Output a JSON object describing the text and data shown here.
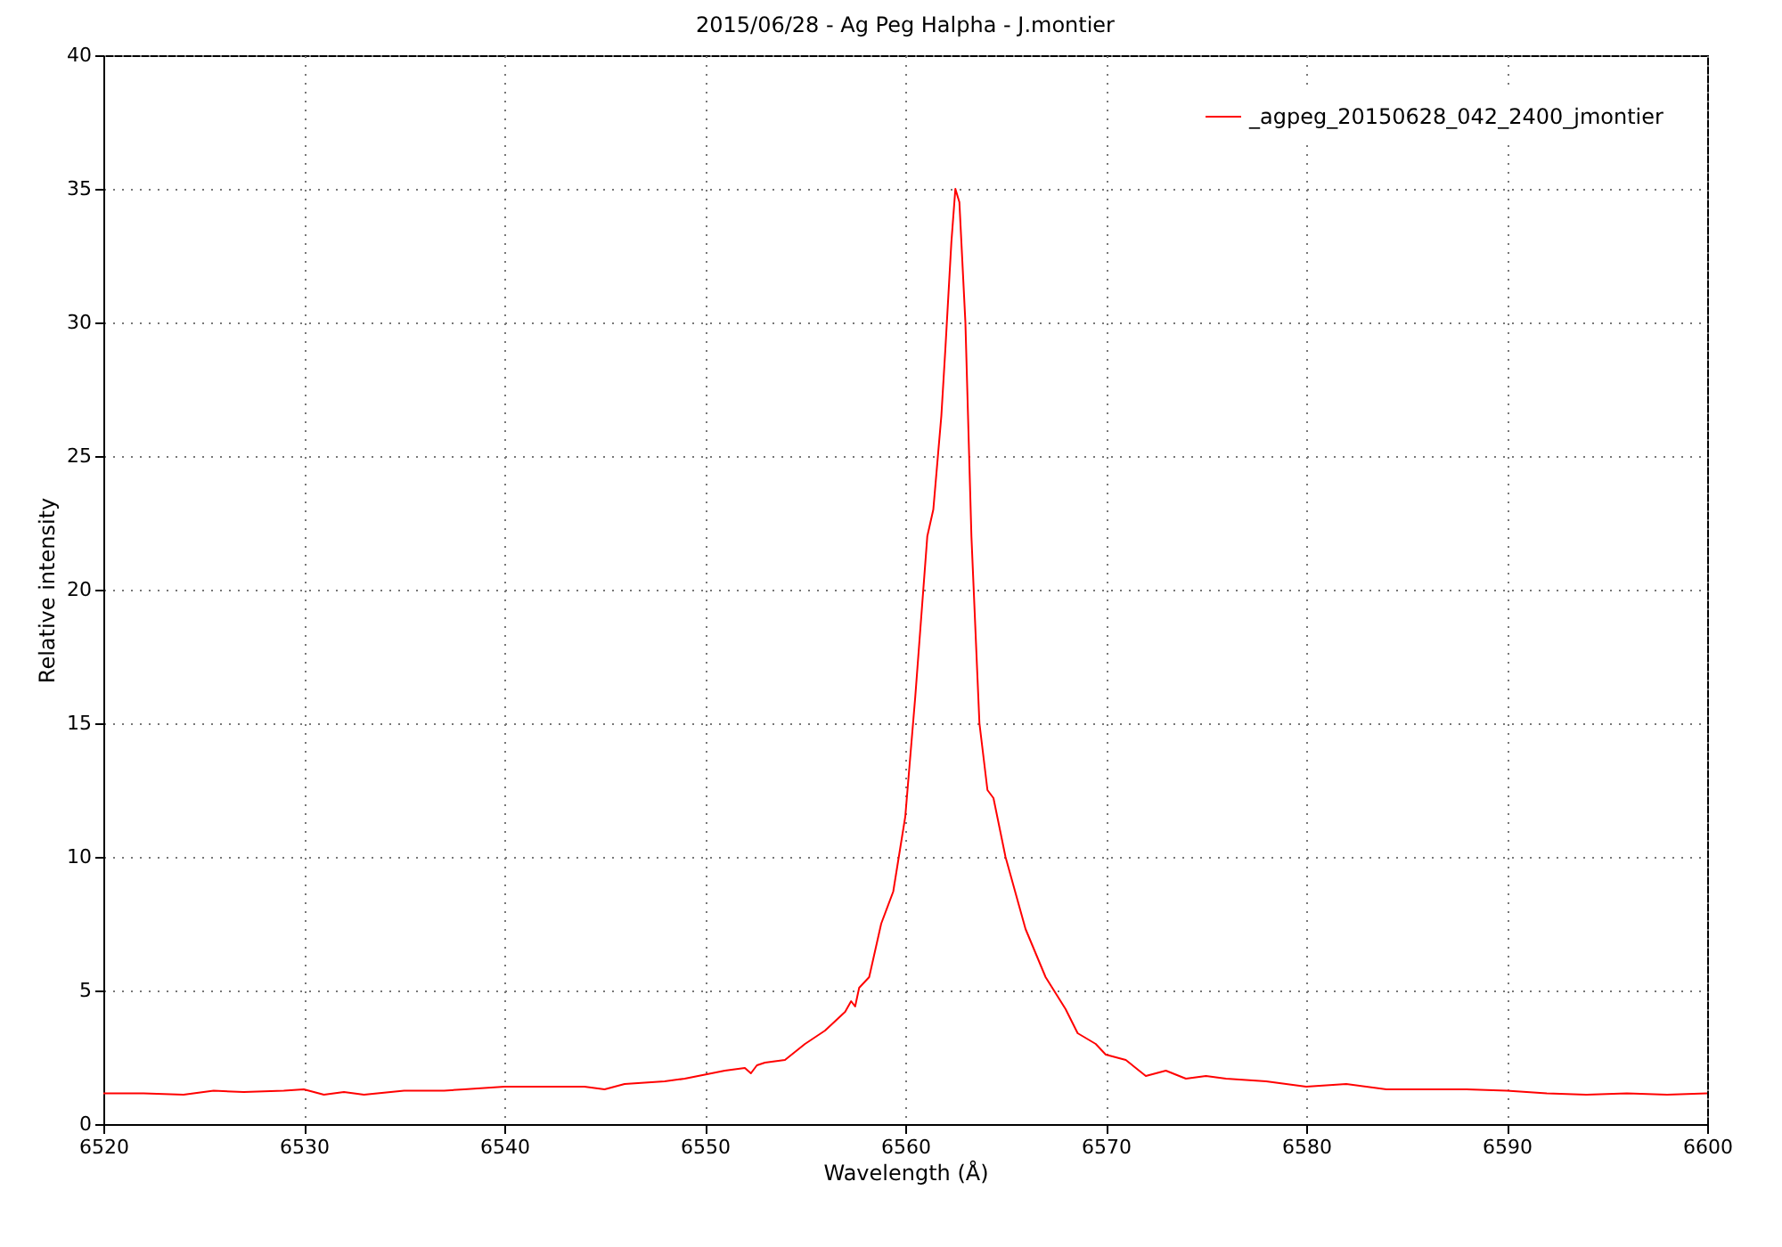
{
  "chart_data": {
    "type": "line",
    "title": "2015/06/28 - Ag Peg Halpha - J.montier",
    "xlabel": "Wavelength (Å)",
    "ylabel": "Relative intensity",
    "xlim": [
      6520,
      6600
    ],
    "xticks": [
      6520,
      6530,
      6540,
      6550,
      6560,
      6570,
      6580,
      6590,
      6600
    ],
    "ylim": [
      0,
      40
    ],
    "yticks": [
      0,
      5,
      10,
      15,
      20,
      25,
      30,
      35,
      40
    ],
    "grid": true,
    "legend": "top right",
    "line_style": "solid",
    "x": [
      6520,
      6522,
      6524,
      6525.5,
      6527,
      6529,
      6530,
      6531,
      6532,
      6533,
      6535,
      6537,
      6538,
      6540,
      6542,
      6544,
      6545,
      6546,
      6547,
      6548,
      6549,
      6550,
      6551,
      6552,
      6552.3,
      6552.6,
      6553,
      6554,
      6555,
      6556,
      6557,
      6557.3,
      6557.5,
      6557.7,
      6558.2,
      6558.8,
      6559.4,
      6560,
      6560.5,
      6560.9,
      6561.1,
      6561.4,
      6561.8,
      6562,
      6562.3,
      6562.5,
      6562.7,
      6563,
      6563.3,
      6563.7,
      6564.1,
      6564.4,
      6565,
      6566,
      6567,
      6568,
      6568.6,
      6569.5,
      6570,
      6571,
      6572,
      6573,
      6574,
      6575,
      6576,
      6578,
      6580,
      6582,
      6584,
      6586,
      6588,
      6590,
      6592,
      6594,
      6596,
      6598,
      6600
    ],
    "series": [
      {
        "name": "_agpeg_20150628_042_2400_jmontier",
        "color": "#ff0000",
        "values": [
          1.15,
          1.15,
          1.1,
          1.25,
          1.2,
          1.25,
          1.3,
          1.1,
          1.2,
          1.1,
          1.25,
          1.25,
          1.3,
          1.4,
          1.4,
          1.4,
          1.3,
          1.5,
          1.55,
          1.6,
          1.7,
          1.85,
          2.0,
          2.1,
          1.9,
          2.2,
          2.3,
          2.4,
          3.0,
          3.5,
          4.2,
          4.6,
          4.4,
          5.1,
          5.5,
          7.5,
          8.7,
          11.5,
          16.0,
          20.0,
          22.0,
          23.0,
          26.5,
          29.0,
          33.0,
          35.0,
          34.5,
          30.0,
          22.0,
          15.0,
          12.5,
          12.2,
          10.0,
          7.3,
          5.5,
          4.3,
          3.4,
          3.0,
          2.6,
          2.4,
          1.8,
          2.0,
          1.7,
          1.8,
          1.7,
          1.6,
          1.4,
          1.5,
          1.3,
          1.3,
          1.3,
          1.25,
          1.15,
          1.1,
          1.15,
          1.1,
          1.15
        ]
      }
    ]
  }
}
